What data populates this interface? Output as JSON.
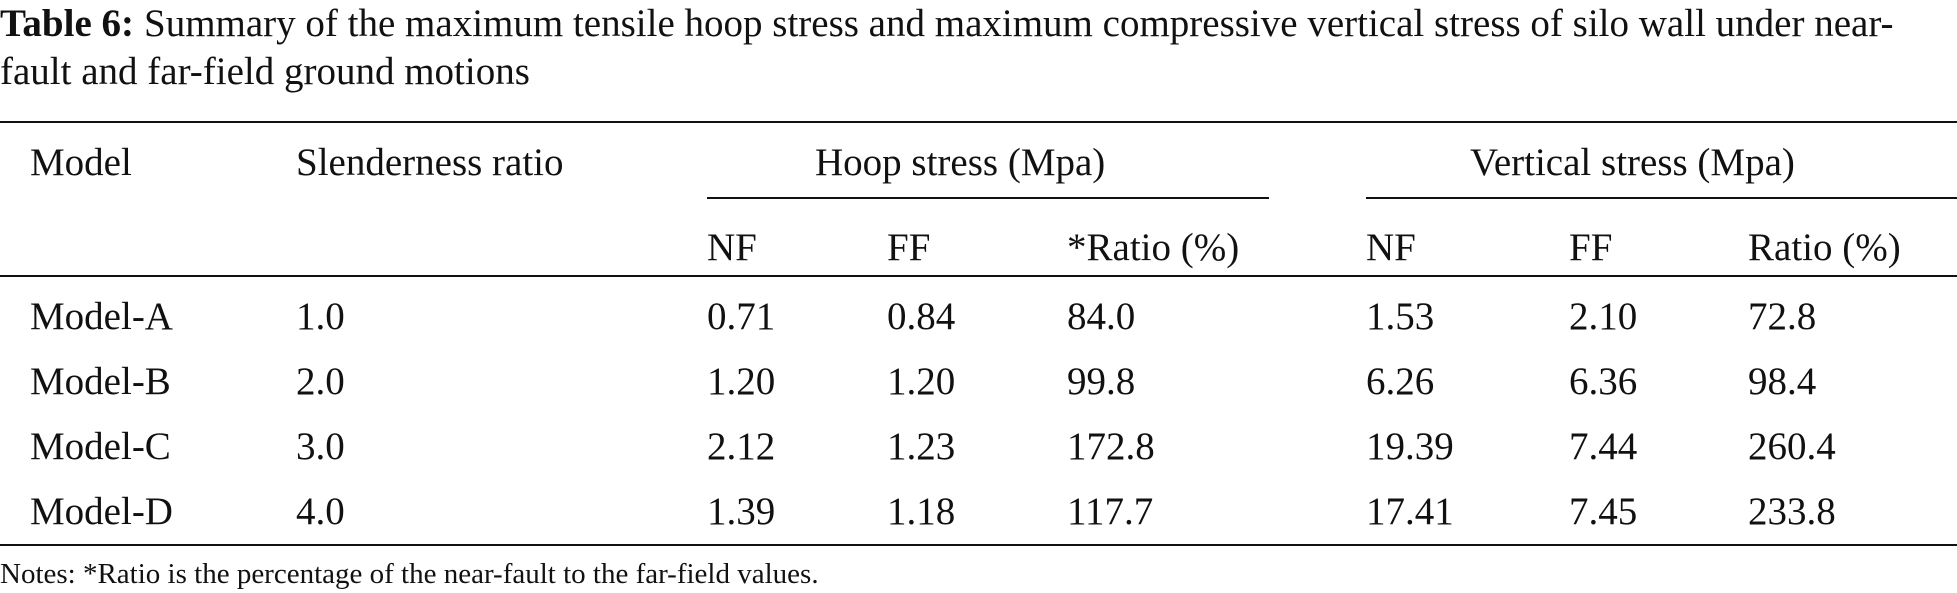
{
  "caption": {
    "label": "Table 6:",
    "text": "Summary of the maximum tensile hoop stress and maximum compressive vertical stress of silo wall under near-fault and far-field ground motions"
  },
  "table": {
    "headers": {
      "model": "Model",
      "slenderness": "Slenderness ratio",
      "hoop_group": "Hoop stress (Mpa)",
      "vertical_group": "Vertical stress (Mpa)",
      "hoop_nf": "NF",
      "hoop_ff": "FF",
      "hoop_ratio": "*Ratio (%)",
      "vert_nf": "NF",
      "vert_ff": "FF",
      "vert_ratio": "Ratio (%)"
    },
    "rows": [
      [
        "Model-A",
        "1.0",
        "0.71",
        "0.84",
        "84.0",
        "1.53",
        "2.10",
        "72.8"
      ],
      [
        "Model-B",
        "2.0",
        "1.20",
        "1.20",
        "99.8",
        "6.26",
        "6.36",
        "98.4"
      ],
      [
        "Model-C",
        "3.0",
        "2.12",
        "1.23",
        "172.8",
        "19.39",
        "7.44",
        "260.4"
      ],
      [
        "Model-D",
        "4.0",
        "1.39",
        "1.18",
        "117.7",
        "17.41",
        "7.45",
        "233.8"
      ]
    ]
  },
  "notes": "Notes: *Ratio is the percentage of the near-fault to the far-field values."
}
